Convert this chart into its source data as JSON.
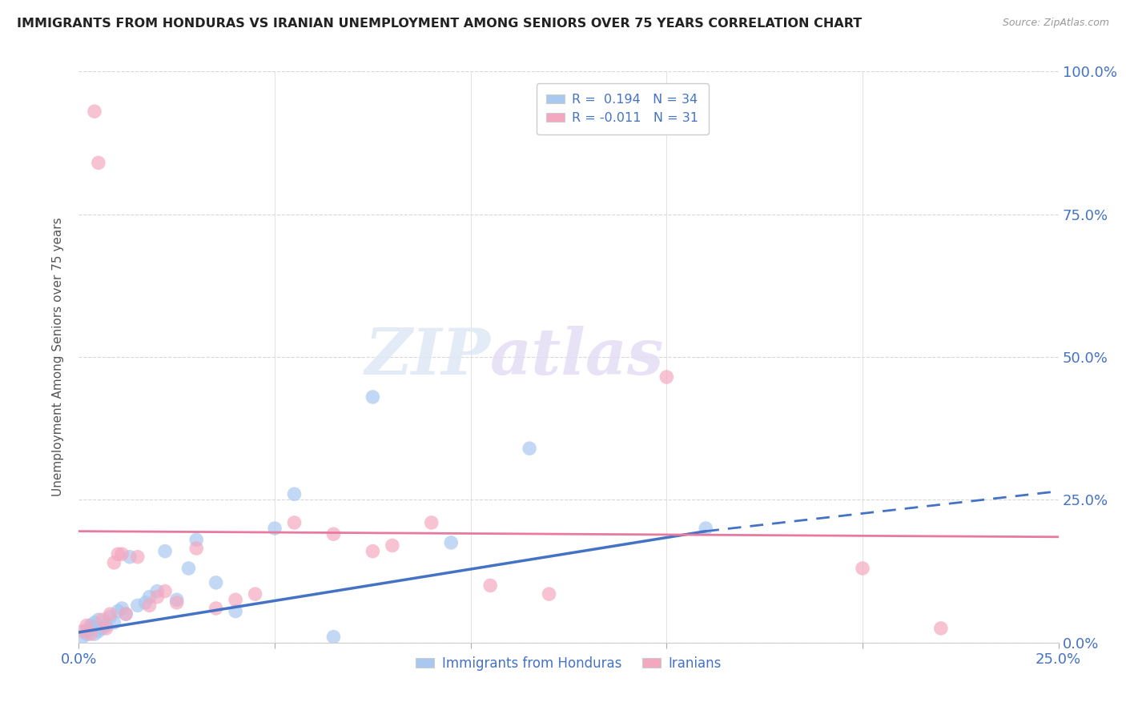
{
  "title": "IMMIGRANTS FROM HONDURAS VS IRANIAN UNEMPLOYMENT AMONG SENIORS OVER 75 YEARS CORRELATION CHART",
  "source": "Source: ZipAtlas.com",
  "ylabel": "Unemployment Among Seniors over 75 years",
  "xlim": [
    0.0,
    0.25
  ],
  "ylim": [
    0.0,
    1.0
  ],
  "xticks": [
    0.0,
    0.05,
    0.1,
    0.15,
    0.2,
    0.25
  ],
  "yticks": [
    0.0,
    0.25,
    0.5,
    0.75,
    1.0
  ],
  "ytick_labels_right": [
    "0.0%",
    "25.0%",
    "50.0%",
    "75.0%",
    "100.0%"
  ],
  "xtick_labels": [
    "0.0%",
    "",
    "",
    "",
    "",
    "25.0%"
  ],
  "blue_color": "#a8c8f0",
  "pink_color": "#f4a8c0",
  "blue_line_color": "#4472c4",
  "pink_line_color": "#e87a9f",
  "blue_scatter_x": [
    0.001,
    0.002,
    0.002,
    0.003,
    0.003,
    0.004,
    0.004,
    0.005,
    0.005,
    0.006,
    0.007,
    0.008,
    0.009,
    0.01,
    0.011,
    0.012,
    0.013,
    0.015,
    0.017,
    0.018,
    0.02,
    0.022,
    0.025,
    0.028,
    0.03,
    0.035,
    0.04,
    0.05,
    0.055,
    0.065,
    0.075,
    0.095,
    0.115,
    0.16
  ],
  "blue_scatter_y": [
    0.01,
    0.015,
    0.02,
    0.025,
    0.03,
    0.015,
    0.035,
    0.02,
    0.04,
    0.025,
    0.03,
    0.045,
    0.035,
    0.055,
    0.06,
    0.05,
    0.15,
    0.065,
    0.07,
    0.08,
    0.09,
    0.16,
    0.075,
    0.13,
    0.18,
    0.105,
    0.055,
    0.2,
    0.26,
    0.01,
    0.43,
    0.175,
    0.34,
    0.2
  ],
  "pink_scatter_x": [
    0.001,
    0.002,
    0.003,
    0.004,
    0.005,
    0.006,
    0.007,
    0.008,
    0.009,
    0.01,
    0.011,
    0.012,
    0.015,
    0.018,
    0.02,
    0.022,
    0.025,
    0.03,
    0.035,
    0.04,
    0.045,
    0.055,
    0.065,
    0.075,
    0.08,
    0.09,
    0.105,
    0.12,
    0.15,
    0.2,
    0.22
  ],
  "pink_scatter_y": [
    0.02,
    0.03,
    0.015,
    0.93,
    0.84,
    0.04,
    0.025,
    0.05,
    0.14,
    0.155,
    0.155,
    0.05,
    0.15,
    0.065,
    0.08,
    0.09,
    0.07,
    0.165,
    0.06,
    0.075,
    0.085,
    0.21,
    0.19,
    0.16,
    0.17,
    0.21,
    0.1,
    0.085,
    0.465,
    0.13,
    0.025
  ],
  "watermark_zip": "ZIP",
  "watermark_atlas": "atlas",
  "background_color": "#ffffff",
  "grid_color": "#d8d8d8"
}
